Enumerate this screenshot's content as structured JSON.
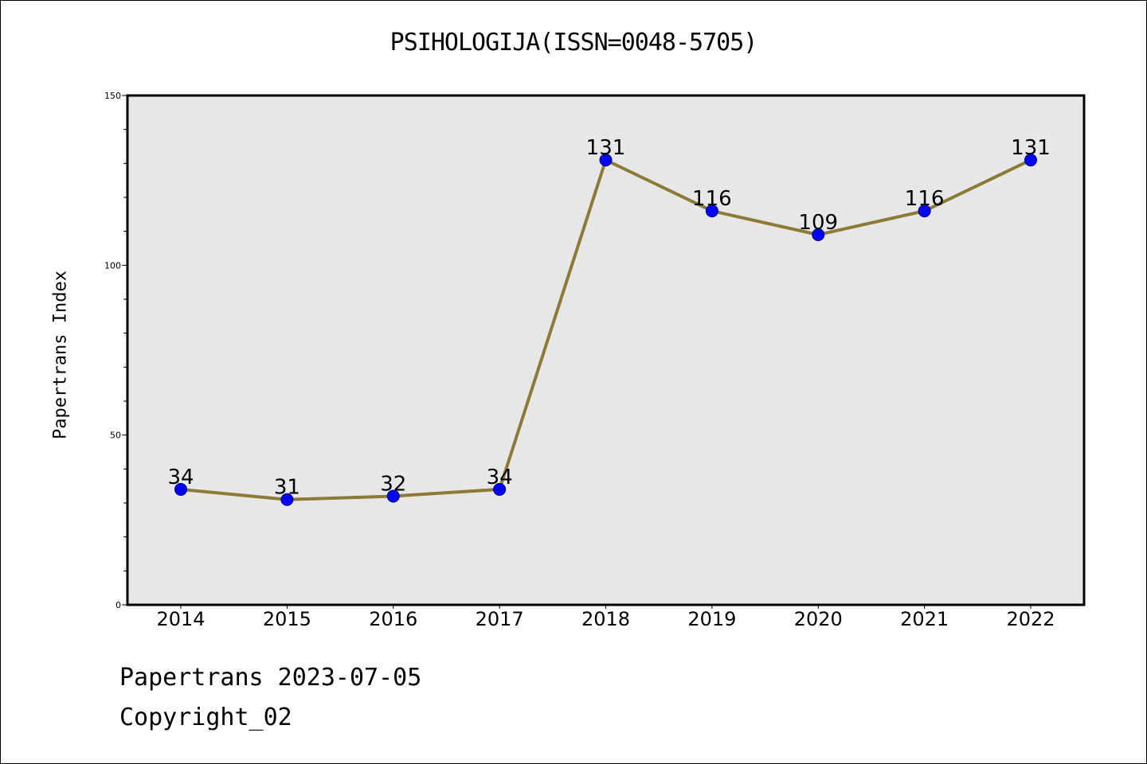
{
  "header": {
    "title": "PSIHOLOGIJA(ISSN=0048-5705)"
  },
  "footer": {
    "date_line": "Papertrans 2023-07-05",
    "copyright_line": "Copyright_02"
  },
  "colors": {
    "plot_background": "#e7e7e7",
    "line": "#8c7b37",
    "marker_fill": "#0000ff",
    "marker_stroke": "#00007a"
  },
  "chart_data": {
    "type": "line",
    "title": "PSIHOLOGIJA(ISSN=0048-5705)",
    "xlabel": "",
    "ylabel": "Papertrans Index",
    "categories": [
      "2014",
      "2015",
      "2016",
      "2017",
      "2018",
      "2019",
      "2020",
      "2021",
      "2022"
    ],
    "series": [
      {
        "values": [
          34,
          31,
          32,
          34,
          131,
          116,
          109,
          116,
          131
        ]
      }
    ],
    "ylim": [
      0,
      150
    ],
    "y_ticks_major": [
      0,
      50,
      100,
      150
    ],
    "y_ticks_minor_step": 10,
    "grid": false,
    "legend": "none",
    "data_labels": true
  }
}
